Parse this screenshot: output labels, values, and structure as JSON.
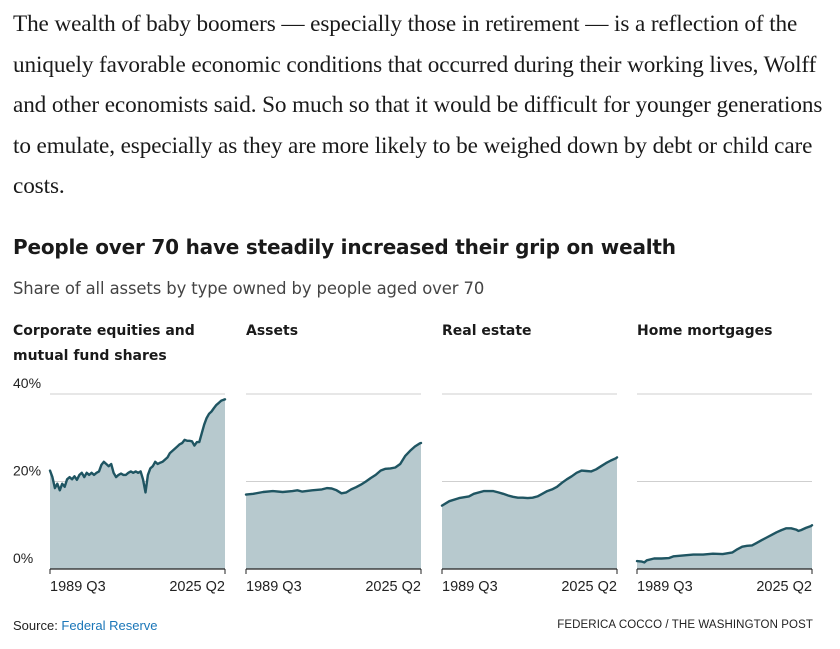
{
  "article": {
    "paragraph": "The wealth of baby boomers — especially those in retirement — is a reflection of the uniquely favorable economic conditions that occurred during their working lives, Wolff and other economists said. So much so that it would be difficult for younger generations to emulate, especially as they are more likely to be weighed down by debt or child care costs."
  },
  "chart_header": {
    "title": "People over 70 have steadily increased their grip on wealth",
    "subtitle": "Share of all assets by type owned by people aged over 70"
  },
  "chart_data": {
    "type": "area",
    "title": "People over 70 have steadily increased their grip on wealth",
    "subtitle": "Share of all assets by type owned by people aged over 70",
    "ylim": [
      0,
      40
    ],
    "yticks": [
      0,
      20,
      40
    ],
    "ytick_labels": [
      "0%",
      "20%",
      "40%"
    ],
    "xlim": [
      1989.5,
      2025.25
    ],
    "xtick_labels": [
      "1989 Q3",
      "2025 Q2"
    ],
    "grid": true,
    "panels": [
      {
        "name": "Corporate equities and mutual fund shares",
        "points": [
          [
            1989.5,
            22.5
          ],
          [
            1990.0,
            21.0
          ],
          [
            1990.5,
            18.5
          ],
          [
            1991.0,
            19.5
          ],
          [
            1991.5,
            18.0
          ],
          [
            1992.0,
            19.5
          ],
          [
            1992.5,
            18.8
          ],
          [
            1993.0,
            20.5
          ],
          [
            1993.5,
            21.0
          ],
          [
            1994.0,
            20.5
          ],
          [
            1994.5,
            21.2
          ],
          [
            1995.0,
            20.4
          ],
          [
            1995.5,
            21.5
          ],
          [
            1996.0,
            22.0
          ],
          [
            1996.5,
            21.0
          ],
          [
            1997.0,
            22.0
          ],
          [
            1997.5,
            21.5
          ],
          [
            1998.0,
            22.0
          ],
          [
            1998.5,
            21.5
          ],
          [
            1999.0,
            22.0
          ],
          [
            1999.5,
            22.3
          ],
          [
            2000.0,
            23.8
          ],
          [
            2000.5,
            24.5
          ],
          [
            2001.0,
            24.0
          ],
          [
            2001.5,
            23.5
          ],
          [
            2002.0,
            24.0
          ],
          [
            2002.5,
            22.0
          ],
          [
            2003.0,
            21.0
          ],
          [
            2003.5,
            21.5
          ],
          [
            2004.0,
            21.8
          ],
          [
            2004.5,
            21.5
          ],
          [
            2005.0,
            21.5
          ],
          [
            2005.5,
            22.0
          ],
          [
            2006.0,
            22.3
          ],
          [
            2006.5,
            22.0
          ],
          [
            2007.0,
            22.3
          ],
          [
            2007.5,
            22.0
          ],
          [
            2008.0,
            22.3
          ],
          [
            2008.5,
            20.5
          ],
          [
            2009.0,
            17.5
          ],
          [
            2009.5,
            21.5
          ],
          [
            2010.0,
            23.0
          ],
          [
            2010.5,
            23.5
          ],
          [
            2011.0,
            24.5
          ],
          [
            2011.5,
            24.0
          ],
          [
            2012.0,
            24.3
          ],
          [
            2012.5,
            24.5
          ],
          [
            2013.0,
            25.0
          ],
          [
            2013.5,
            25.5
          ],
          [
            2014.0,
            26.5
          ],
          [
            2014.5,
            27.0
          ],
          [
            2015.0,
            27.5
          ],
          [
            2015.5,
            28.0
          ],
          [
            2016.0,
            28.5
          ],
          [
            2016.5,
            28.8
          ],
          [
            2017.0,
            29.5
          ],
          [
            2017.5,
            29.3
          ],
          [
            2018.0,
            29.3
          ],
          [
            2018.5,
            29.2
          ],
          [
            2019.0,
            28.2
          ],
          [
            2019.5,
            29.0
          ],
          [
            2020.0,
            29.0
          ],
          [
            2020.5,
            31.0
          ],
          [
            2021.0,
            33.0
          ],
          [
            2021.5,
            34.5
          ],
          [
            2022.0,
            35.5
          ],
          [
            2022.5,
            36.0
          ],
          [
            2023.0,
            36.8
          ],
          [
            2023.5,
            37.5
          ],
          [
            2024.0,
            38.0
          ],
          [
            2024.5,
            38.5
          ],
          [
            2025.0,
            38.7
          ],
          [
            2025.25,
            38.8
          ]
        ]
      },
      {
        "name": "Assets",
        "points": [
          [
            1989.5,
            17.0
          ],
          [
            1991.0,
            17.2
          ],
          [
            1993.0,
            17.6
          ],
          [
            1995.0,
            17.8
          ],
          [
            1997.0,
            17.6
          ],
          [
            1999.0,
            17.8
          ],
          [
            2000.0,
            18.0
          ],
          [
            2001.0,
            17.7
          ],
          [
            2003.0,
            18.0
          ],
          [
            2005.0,
            18.2
          ],
          [
            2006.0,
            18.5
          ],
          [
            2007.0,
            18.4
          ],
          [
            2008.0,
            18.0
          ],
          [
            2009.0,
            17.3
          ],
          [
            2010.0,
            17.5
          ],
          [
            2011.0,
            18.2
          ],
          [
            2012.0,
            18.7
          ],
          [
            2013.0,
            19.3
          ],
          [
            2014.0,
            20.0
          ],
          [
            2015.0,
            20.8
          ],
          [
            2016.0,
            21.5
          ],
          [
            2017.0,
            22.5
          ],
          [
            2018.0,
            22.9
          ],
          [
            2019.0,
            23.0
          ],
          [
            2020.0,
            23.2
          ],
          [
            2021.0,
            24.0
          ],
          [
            2022.0,
            25.8
          ],
          [
            2023.0,
            27.0
          ],
          [
            2024.0,
            28.0
          ],
          [
            2025.0,
            28.7
          ],
          [
            2025.25,
            28.8
          ]
        ]
      },
      {
        "name": "Real estate",
        "points": [
          [
            1989.5,
            14.5
          ],
          [
            1991.0,
            15.5
          ],
          [
            1993.0,
            16.2
          ],
          [
            1995.0,
            16.6
          ],
          [
            1996.0,
            17.2
          ],
          [
            1998.0,
            17.8
          ],
          [
            2000.0,
            17.8
          ],
          [
            2001.0,
            17.5
          ],
          [
            2002.0,
            17.2
          ],
          [
            2003.0,
            16.8
          ],
          [
            2004.0,
            16.5
          ],
          [
            2005.0,
            16.3
          ],
          [
            2006.0,
            16.3
          ],
          [
            2007.0,
            16.2
          ],
          [
            2008.0,
            16.3
          ],
          [
            2009.0,
            16.6
          ],
          [
            2010.0,
            17.2
          ],
          [
            2011.0,
            17.8
          ],
          [
            2012.0,
            18.2
          ],
          [
            2013.0,
            18.8
          ],
          [
            2014.0,
            19.7
          ],
          [
            2015.0,
            20.5
          ],
          [
            2016.0,
            21.2
          ],
          [
            2017.0,
            22.0
          ],
          [
            2018.0,
            22.5
          ],
          [
            2019.0,
            22.4
          ],
          [
            2020.0,
            22.3
          ],
          [
            2021.0,
            22.8
          ],
          [
            2022.0,
            23.5
          ],
          [
            2023.0,
            24.2
          ],
          [
            2024.0,
            24.8
          ],
          [
            2025.0,
            25.3
          ],
          [
            2025.25,
            25.5
          ]
        ]
      },
      {
        "name": "Home mortgages",
        "points": [
          [
            1989.5,
            1.8
          ],
          [
            1990.5,
            1.7
          ],
          [
            1991.0,
            1.5
          ],
          [
            1991.5,
            2.0
          ],
          [
            1993.0,
            2.4
          ],
          [
            1994.5,
            2.4
          ],
          [
            1996.0,
            2.5
          ],
          [
            1997.0,
            2.9
          ],
          [
            1999.0,
            3.1
          ],
          [
            2001.0,
            3.3
          ],
          [
            2003.0,
            3.3
          ],
          [
            2005.0,
            3.5
          ],
          [
            2007.0,
            3.4
          ],
          [
            2009.0,
            3.8
          ],
          [
            2010.0,
            4.5
          ],
          [
            2011.0,
            5.1
          ],
          [
            2012.0,
            5.3
          ],
          [
            2013.0,
            5.4
          ],
          [
            2014.0,
            6.0
          ],
          [
            2015.0,
            6.6
          ],
          [
            2016.0,
            7.2
          ],
          [
            2017.0,
            7.8
          ],
          [
            2018.0,
            8.4
          ],
          [
            2019.0,
            8.9
          ],
          [
            2020.0,
            9.3
          ],
          [
            2021.0,
            9.3
          ],
          [
            2022.0,
            9.0
          ],
          [
            2022.5,
            8.7
          ],
          [
            2023.0,
            8.9
          ],
          [
            2024.0,
            9.4
          ],
          [
            2025.0,
            9.8
          ],
          [
            2025.25,
            10.0
          ]
        ]
      }
    ]
  },
  "footer": {
    "source_label": "Source: ",
    "source_link": "Federal Reserve",
    "credit": "FEDERICA COCCO / THE WASHINGTON POST"
  },
  "colors": {
    "line": "#1f5562",
    "fill": "#b7c9ce",
    "grid": "#cfcfcf",
    "axis": "#222222",
    "tick_text": "#222222"
  }
}
